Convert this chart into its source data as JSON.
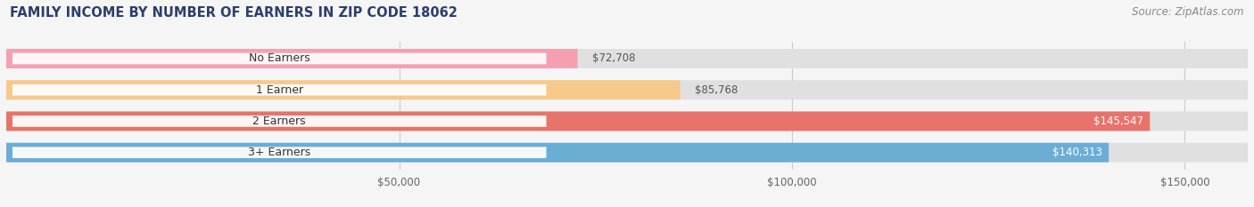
{
  "title": "FAMILY INCOME BY NUMBER OF EARNERS IN ZIP CODE 18062",
  "source": "Source: ZipAtlas.com",
  "categories": [
    "No Earners",
    "1 Earner",
    "2 Earners",
    "3+ Earners"
  ],
  "values": [
    72708,
    85768,
    145547,
    140313
  ],
  "bar_colors": [
    "#f4a0b0",
    "#f7c98b",
    "#e8736a",
    "#6aaed6"
  ],
  "value_labels": [
    "$72,708",
    "$85,768",
    "$145,547",
    "$140,313"
  ],
  "tick_labels": [
    "$50,000",
    "$100,000",
    "$150,000"
  ],
  "tick_values": [
    50000,
    100000,
    150000
  ],
  "xmax": 158000,
  "fig_width": 14.06,
  "fig_height": 2.33,
  "background_color": "#f5f5f5",
  "bar_bg_color": "#e0e0e0",
  "title_fontsize": 10.5,
  "source_fontsize": 8.5,
  "bar_height": 0.62,
  "label_fontsize": 9,
  "value_fontsize": 8.5
}
